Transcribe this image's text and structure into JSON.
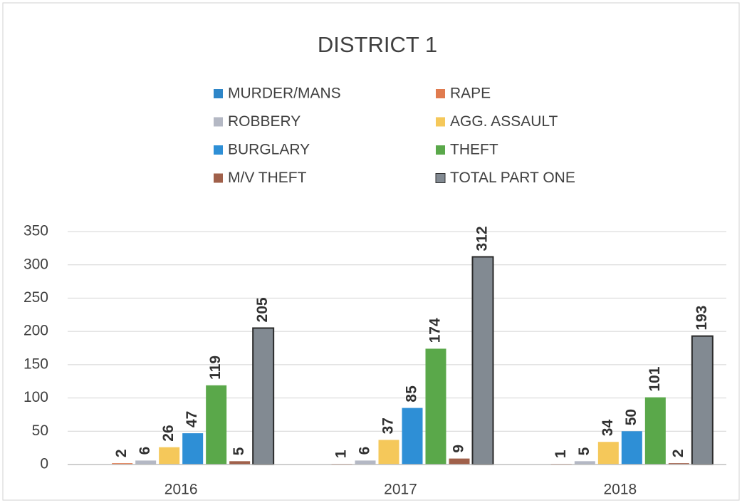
{
  "chart_data": {
    "type": "bar",
    "title": "DISTRICT 1",
    "categories": [
      "2016",
      "2017",
      "2018"
    ],
    "series": [
      {
        "name": "MURDER/MANS",
        "color": "#2e86c8",
        "values": [
          null,
          null,
          null
        ]
      },
      {
        "name": "RAPE",
        "color": "#e07b4f",
        "values": [
          2,
          1,
          1
        ]
      },
      {
        "name": "ROBBERY",
        "color": "#b4b8c4",
        "values": [
          6,
          6,
          5
        ]
      },
      {
        "name": "AGG. ASSAULT",
        "color": "#f5c85a",
        "values": [
          26,
          37,
          34
        ]
      },
      {
        "name": "BURGLARY",
        "color": "#2e8fd6",
        "values": [
          47,
          85,
          50
        ]
      },
      {
        "name": "THEFT",
        "color": "#5aa84a",
        "values": [
          119,
          174,
          101
        ]
      },
      {
        "name": "M/V THEFT",
        "color": "#a0604a",
        "values": [
          5,
          9,
          2
        ]
      },
      {
        "name": "TOTAL PART ONE",
        "color": "#828a92",
        "values": [
          205,
          312,
          193
        ]
      }
    ],
    "ylim": [
      0,
      350
    ],
    "yticks": [
      0,
      50,
      100,
      150,
      200,
      250,
      300,
      350
    ],
    "grid": true,
    "legend": "top"
  }
}
